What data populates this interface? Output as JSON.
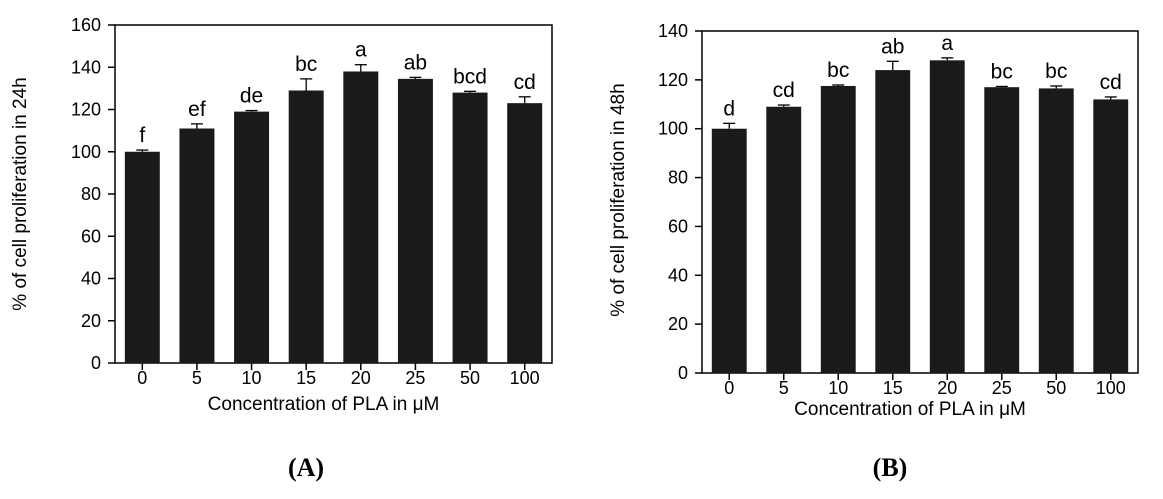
{
  "chart_data": [
    {
      "type": "bar",
      "panel_label": "(A)",
      "categories": [
        "0",
        "5",
        "10",
        "15",
        "20",
        "25",
        "50",
        "100"
      ],
      "values": [
        100,
        111,
        119,
        129,
        138,
        134.5,
        128,
        123
      ],
      "errors": [
        0.8,
        2.2,
        0.5,
        5.5,
        3.2,
        0.7,
        0.6,
        3
      ],
      "significance": [
        "f",
        "ef",
        "de",
        "bc",
        "a",
        "ab",
        "bcd",
        "cd"
      ],
      "xlabel": "Concentration of PLA in μM",
      "ylabel": "% of cell proliferation in 24h",
      "ylim": [
        0,
        160
      ],
      "yticks": [
        0,
        20,
        40,
        60,
        80,
        100,
        120,
        140,
        160
      ],
      "bar_color": "#1a1a1a",
      "grid": false
    },
    {
      "type": "bar",
      "panel_label": "(B)",
      "categories": [
        "0",
        "5",
        "10",
        "15",
        "20",
        "25",
        "50",
        "100"
      ],
      "values": [
        100,
        109,
        117.5,
        124,
        128,
        117,
        116.5,
        112
      ],
      "errors": [
        2.2,
        0.7,
        0.4,
        3.6,
        1,
        0.3,
        1,
        1
      ],
      "significance": [
        "d",
        "cd",
        "bc",
        "ab",
        "a",
        "bc",
        "bc",
        "cd"
      ],
      "xlabel": "Concentration of PLA in μM",
      "ylabel": "% of cell proliferation in 48h",
      "ylim": [
        0,
        140
      ],
      "yticks": [
        0,
        20,
        40,
        60,
        80,
        100,
        120,
        140
      ],
      "bar_color": "#1a1a1a",
      "grid": false
    }
  ]
}
